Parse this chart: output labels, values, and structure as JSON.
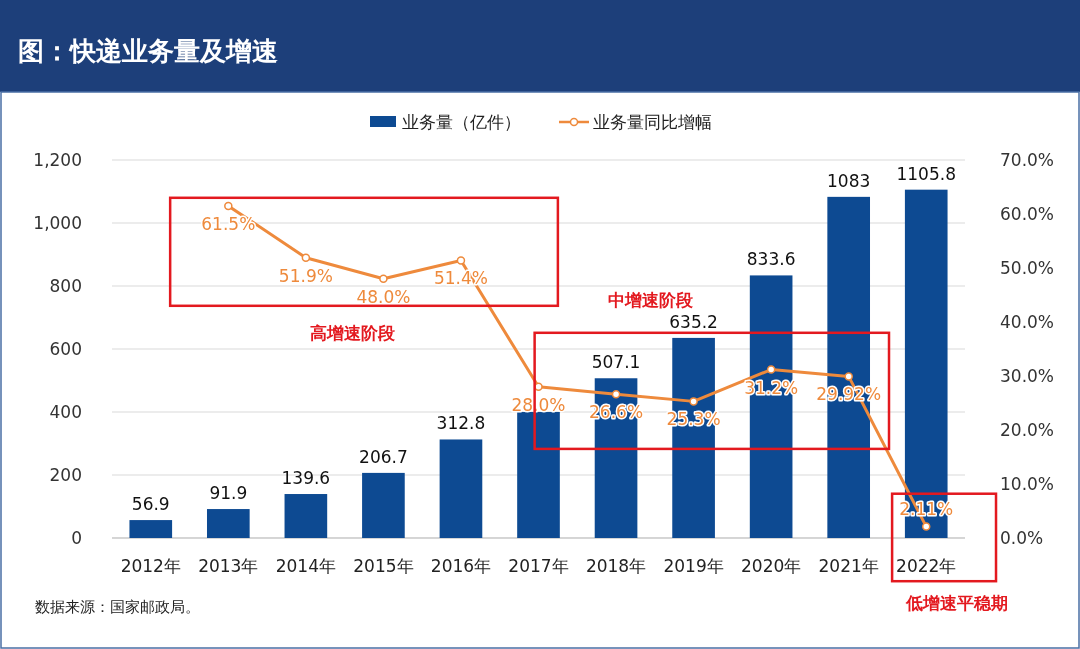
{
  "chart_data": {
    "type": "bar",
    "title": "图：快递业务量及增速",
    "categories": [
      "2012年",
      "2013年",
      "2014年",
      "2015年",
      "2016年",
      "2017年",
      "2018年",
      "2019年",
      "2020年",
      "2021年",
      "2022年"
    ],
    "series": [
      {
        "name": "业务量（亿件）",
        "color": "#0d4a92",
        "values": [
          56.9,
          91.9,
          139.6,
          206.7,
          312.8,
          400,
          507.1,
          635.2,
          833.6,
          1083,
          1105.8
        ],
        "value_labels": [
          "56.9",
          "91.9",
          "139.6",
          "206.7",
          "312.8",
          null,
          "507.1",
          "635.2",
          "833.6",
          "1083",
          "1105.8"
        ]
      },
      {
        "name": "业务量同比增幅",
        "type": "line",
        "axis": "y2",
        "color": "#ee8a3c",
        "marker": "circle",
        "values": [
          null,
          61.5,
          51.9,
          48.0,
          51.4,
          28.0,
          26.6,
          25.3,
          31.2,
          29.92,
          2.11
        ],
        "value_labels": [
          null,
          "61.5%",
          "51.9%",
          "48.0%",
          "51.4%",
          "28.0%",
          "26.6%",
          "25.3%",
          "31.2%",
          "29.92%",
          "2.11%"
        ]
      }
    ],
    "ylim": [
      0,
      1200
    ],
    "yticks": [
      {
        "value": 0,
        "label": "0"
      },
      {
        "value": 200,
        "label": "200"
      },
      {
        "value": 400,
        "label": "400"
      },
      {
        "value": 600,
        "label": "600"
      },
      {
        "value": 800,
        "label": "800"
      },
      {
        "value": 1000,
        "label": "1,000"
      },
      {
        "value": 1200,
        "label": "1,200"
      }
    ],
    "y2lim": [
      0,
      70
    ],
    "y2ticks": [
      {
        "value": 0,
        "label": "0.0%"
      },
      {
        "value": 10,
        "label": "10.0%"
      },
      {
        "value": 20,
        "label": "20.0%"
      },
      {
        "value": 30,
        "label": "30.0%"
      },
      {
        "value": 40,
        "label": "40.0%"
      },
      {
        "value": 50,
        "label": "50.0%"
      },
      {
        "value": 60,
        "label": "60.0%"
      },
      {
        "value": 70,
        "label": "70.0%"
      }
    ],
    "grid": "y",
    "legend": "top",
    "annotations": [
      "高增速阶段",
      "中增速阶段",
      "低增速平稳期",
      "数据来源：国家邮政局。"
    ]
  }
}
